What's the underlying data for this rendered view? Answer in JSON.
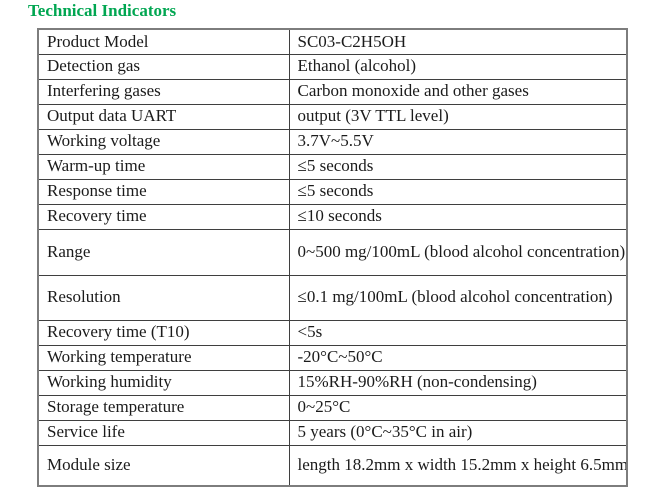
{
  "page": {
    "title": "Technical Indicators"
  },
  "colors": {
    "title_green": "#00a651",
    "border_outer": "#7d7d7d",
    "border_inner": "#3f3f3f",
    "text": "#1b1b1b",
    "background": "#ffffff"
  },
  "table": {
    "rows": [
      {
        "label": "Product Model",
        "value": "SC03-C2H5OH"
      },
      {
        "label": "Detection gas",
        "value": "Ethanol (alcohol)"
      },
      {
        "label": "Interfering gases",
        "value": "Carbon monoxide and other gases"
      },
      {
        "label": "Output data UART",
        "value": "output (3V TTL level)"
      },
      {
        "label": "Working voltage",
        "value": "3.7V~5.5V"
      },
      {
        "label": "Warm-up time",
        "value": "≤5 seconds"
      },
      {
        "label": "Response time",
        "value": "≤5 seconds"
      },
      {
        "label": "Recovery time",
        "value": "≤10 seconds"
      },
      {
        "label": "Range",
        "value": "0~500 mg/100mL (blood alcohol\nconcentration)"
      },
      {
        "label": "Resolution",
        "value": "≤0.1 mg/100mL (blood alcohol\nconcentration)"
      },
      {
        "label": "Recovery time (T10)",
        "value": "<5s"
      },
      {
        "label": "Working temperature",
        "value": "-20°C~50°C"
      },
      {
        "label": "Working humidity",
        "value": "15%RH-90%RH (non-condensing)"
      },
      {
        "label": "Storage temperature",
        "value": "0~25°C"
      },
      {
        "label": "Service life",
        "value": "5 years (0°C~35°C in air)"
      },
      {
        "label": "Module size",
        "value": "length 18.2mm x width 15.2mm x height\n6.5mm"
      }
    ]
  }
}
